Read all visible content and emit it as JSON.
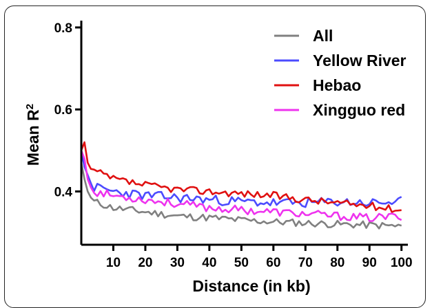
{
  "chart_data": {
    "type": "line",
    "title": "",
    "xlabel": "Distance (in kb)",
    "ylabel_main": "Mean R",
    "ylabel_sup": "2",
    "xlim": [
      0,
      102
    ],
    "ylim": [
      0.27,
      0.82
    ],
    "xticks": [
      10,
      20,
      30,
      40,
      50,
      60,
      70,
      80,
      90,
      100
    ],
    "xtick_labels": [
      "10",
      "20",
      "30",
      "40",
      "50",
      "60",
      "70",
      "80",
      "90",
      "100"
    ],
    "yticks": [
      0.4,
      0.6,
      0.8
    ],
    "ytick_labels": [
      "0.4",
      "0.6",
      "0.8"
    ],
    "grid": false,
    "legend_position": "top-right",
    "series": [
      {
        "name": "All",
        "color": "#808080",
        "start": [
          [
            0,
            0.47
          ],
          [
            1,
            0.43
          ],
          [
            2,
            0.4
          ],
          [
            3,
            0.385
          ]
        ],
        "anchors": [
          [
            4,
            0.375
          ],
          [
            10,
            0.36
          ],
          [
            20,
            0.35
          ],
          [
            30,
            0.34
          ],
          [
            40,
            0.336
          ],
          [
            50,
            0.33
          ],
          [
            60,
            0.326
          ],
          [
            70,
            0.323
          ],
          [
            80,
            0.32
          ],
          [
            90,
            0.318
          ],
          [
            100,
            0.315
          ]
        ],
        "amp": 0.009,
        "seed": 11
      },
      {
        "name": "Yellow River",
        "color": "#4b4bff",
        "start": [
          [
            0,
            0.5
          ],
          [
            1,
            0.46
          ],
          [
            2,
            0.44
          ],
          [
            3,
            0.42
          ]
        ],
        "anchors": [
          [
            4,
            0.41
          ],
          [
            10,
            0.4
          ],
          [
            20,
            0.39
          ],
          [
            30,
            0.385
          ],
          [
            40,
            0.38
          ],
          [
            50,
            0.375
          ],
          [
            60,
            0.372
          ],
          [
            70,
            0.372
          ],
          [
            80,
            0.375
          ],
          [
            90,
            0.372
          ],
          [
            100,
            0.375
          ]
        ],
        "amp": 0.012,
        "seed": 23
      },
      {
        "name": "Hebao",
        "color": "#e01010",
        "start": [
          [
            0,
            0.5
          ],
          [
            1,
            0.52
          ],
          [
            2,
            0.47
          ],
          [
            3,
            0.455
          ]
        ],
        "anchors": [
          [
            4,
            0.45
          ],
          [
            10,
            0.43
          ],
          [
            20,
            0.415
          ],
          [
            30,
            0.405
          ],
          [
            40,
            0.4
          ],
          [
            50,
            0.395
          ],
          [
            60,
            0.39
          ],
          [
            70,
            0.38
          ],
          [
            80,
            0.372
          ],
          [
            90,
            0.365
          ],
          [
            100,
            0.355
          ]
        ],
        "amp": 0.009,
        "seed": 37
      },
      {
        "name": "Xingguo red",
        "color": "#ee33ee",
        "start": [
          [
            0,
            0.5
          ],
          [
            1,
            0.48
          ],
          [
            2,
            0.43
          ],
          [
            3,
            0.41
          ]
        ],
        "anchors": [
          [
            4,
            0.4
          ],
          [
            10,
            0.39
          ],
          [
            20,
            0.38
          ],
          [
            30,
            0.37
          ],
          [
            40,
            0.36
          ],
          [
            50,
            0.355
          ],
          [
            60,
            0.35
          ],
          [
            70,
            0.345
          ],
          [
            80,
            0.34
          ],
          [
            90,
            0.335
          ],
          [
            100,
            0.34
          ]
        ],
        "amp": 0.01,
        "seed": 53
      }
    ]
  }
}
